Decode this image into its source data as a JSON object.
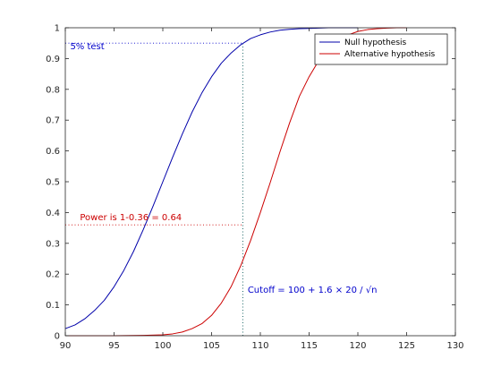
{
  "chart_data": {
    "type": "line",
    "title": "",
    "xlabel": "",
    "ylabel": "",
    "xlim": [
      90,
      130
    ],
    "ylim": [
      0,
      1
    ],
    "x_ticks": [
      90,
      95,
      100,
      105,
      110,
      115,
      120,
      125,
      130
    ],
    "y_ticks": [
      0,
      0.1,
      0.2,
      0.3,
      0.4,
      0.5,
      0.6,
      0.7,
      0.8,
      0.9,
      1
    ],
    "y_tick_labels": [
      "0",
      "0.1",
      "0.2",
      "0.3",
      "0.4",
      "0.5",
      "0.6",
      "0.7",
      "0.8",
      "0.9",
      "1"
    ],
    "grid": false,
    "legend_position": "top-right",
    "series": [
      {
        "name": "Null hypothesis",
        "color": "#0000aa",
        "x": [
          90,
          91,
          92,
          93,
          94,
          95,
          96,
          97,
          98,
          99,
          100,
          101,
          102,
          103,
          104,
          105,
          106,
          107,
          108,
          109,
          110,
          111,
          112,
          113,
          114,
          115,
          116,
          117,
          118,
          119,
          120
        ],
        "y": [
          0.023,
          0.035,
          0.055,
          0.082,
          0.115,
          0.159,
          0.212,
          0.274,
          0.345,
          0.421,
          0.5,
          0.579,
          0.655,
          0.726,
          0.788,
          0.841,
          0.885,
          0.918,
          0.945,
          0.965,
          0.977,
          0.986,
          0.992,
          0.995,
          0.997,
          0.998,
          0.999,
          1.0,
          1.0,
          1.0,
          1.0
        ]
      },
      {
        "name": "Alternative hypothesis",
        "color": "#cc0000",
        "x": [
          90,
          95,
          98,
          100,
          101,
          102,
          103,
          104,
          105,
          106,
          107,
          108,
          109,
          110,
          111,
          112,
          113,
          114,
          115,
          116,
          117,
          118,
          119,
          120,
          121,
          122,
          123,
          124,
          125
        ],
        "y": [
          0.0,
          0.0,
          0.001,
          0.003,
          0.006,
          0.012,
          0.023,
          0.039,
          0.066,
          0.106,
          0.159,
          0.228,
          0.309,
          0.4,
          0.496,
          0.596,
          0.691,
          0.777,
          0.841,
          0.894,
          0.933,
          0.96,
          0.977,
          0.988,
          0.994,
          0.997,
          0.999,
          1.0,
          1.0
        ]
      }
    ],
    "reference_lines": {
      "cutoff_x": 108.2,
      "null_level": 0.95,
      "power_level": 0.36
    },
    "annotations": [
      {
        "text": "5% test",
        "color": "#0000cc",
        "x": 90.5,
        "y": 0.93
      },
      {
        "text": "Power is 1-0.36 = 0.64",
        "color": "#cc0000",
        "x": 91.5,
        "y": 0.375
      },
      {
        "text": "Cutoff = 100 + 1.6 × 20 / √n",
        "color": "#0000cc",
        "x": 108.7,
        "y": 0.14
      }
    ]
  }
}
